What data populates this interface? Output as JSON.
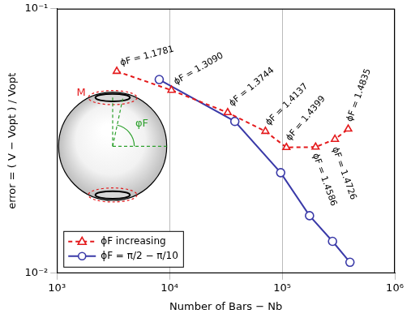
{
  "chart_data": {
    "type": "line",
    "x_label": "Number of Bars − Nb",
    "y_label": "error = ( V − Vopt ) / Vopt",
    "log": true,
    "grid": true,
    "legend": "lower left",
    "xlim": [
      1000,
      1000000
    ],
    "xticks": [
      {
        "value": 1000,
        "label": "10³"
      },
      {
        "value": 10000,
        "label": "10⁴"
      },
      {
        "value": 100000,
        "label": "10⁵"
      },
      {
        "value": 1000000,
        "label": "10⁶"
      }
    ],
    "ylim": [
      0.01,
      0.1
    ],
    "yticks": [
      {
        "value": 0.01,
        "label": "10⁻²"
      },
      {
        "value": 0.1,
        "label": "10⁻¹"
      }
    ],
    "series": [
      {
        "name": "ϕF increasing",
        "color": "#e41a1c",
        "marker": "triangle",
        "line_style": "dashed",
        "x": [
          3400,
          10400,
          32800,
          71000,
          109000,
          198000,
          294000,
          386000
        ],
        "values": [
          0.058,
          0.0492,
          0.0405,
          0.0344,
          0.0299,
          0.03,
          0.0321,
          0.0351
        ]
      },
      {
        "name": "ϕF = π/2 − π/10",
        "color": "#3a3aa8",
        "marker": "circle",
        "line_style": "solid",
        "x": [
          8100,
          38000,
          97000,
          175000,
          280000,
          400000
        ],
        "values": [
          0.054,
          0.0375,
          0.024,
          0.0165,
          0.0132,
          0.011
        ]
      }
    ],
    "annotations": [
      {
        "text": "ϕF = 1.1781",
        "x": 3700,
        "y": 0.061
      },
      {
        "text": "ϕF = 1.3090",
        "x": 11400,
        "y": 0.0516
      },
      {
        "text": "ϕF = 1.3744",
        "x": 35900,
        "y": 0.0427
      },
      {
        "text": "ϕF = 1.4137",
        "x": 76400,
        "y": 0.0361
      },
      {
        "text": "ϕF = 1.4399",
        "x": 117000,
        "y": 0.0316
      },
      {
        "text": "ϕF = 1.4586",
        "x": 187000,
        "y": 0.0281
      },
      {
        "text": "ϕF = 1.4726",
        "x": 279000,
        "y": 0.0297
      },
      {
        "text": "ϕF = 1.4835",
        "x": 414000,
        "y": 0.0373
      }
    ],
    "inset_labels": [
      "M",
      "φF"
    ]
  }
}
